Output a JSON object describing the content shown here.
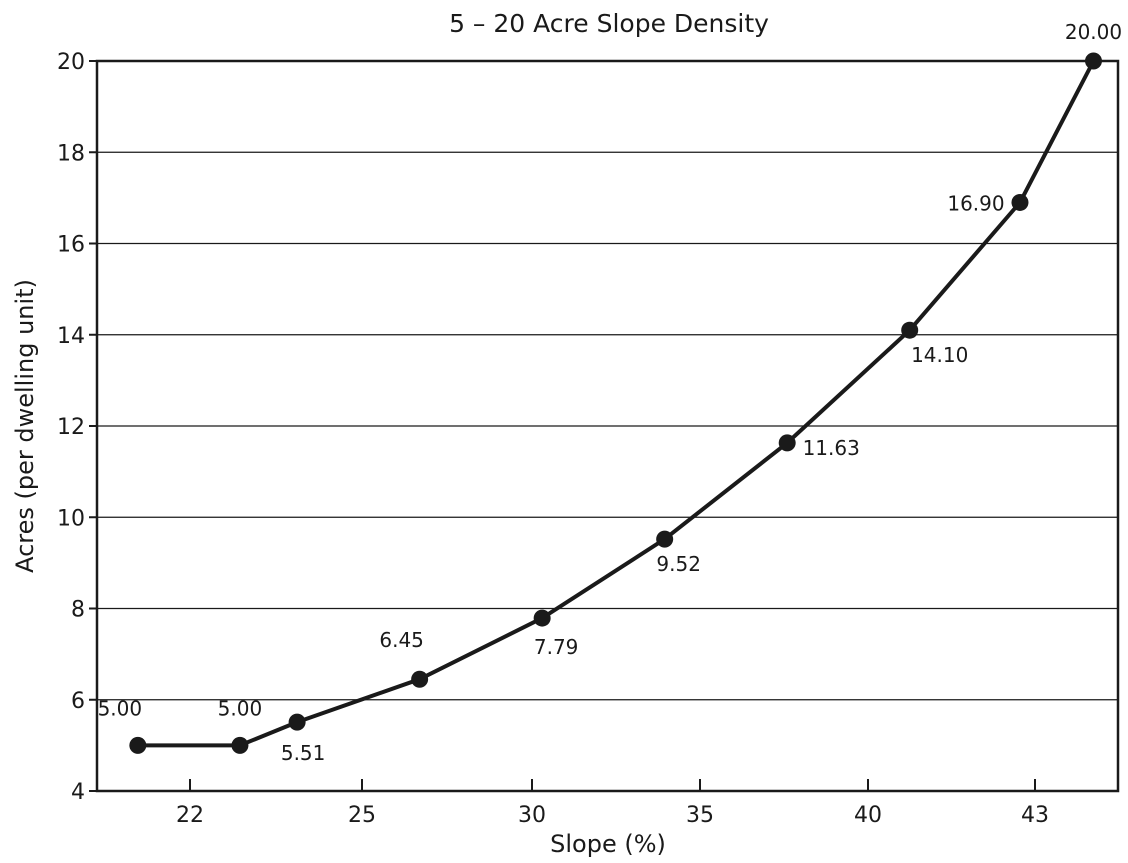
{
  "chart_data": {
    "type": "line",
    "title": "5 – 20 Acre Slope Density",
    "xlabel": "Slope (%)",
    "ylabel": "Acres (per dwelling unit)",
    "x_tick_labels": [
      "22",
      "25",
      "30",
      "35",
      "40",
      "43"
    ],
    "y_ticks": [
      4,
      6,
      8,
      10,
      12,
      14,
      16,
      18,
      20
    ],
    "ylim": [
      4,
      20
    ],
    "grid": "horizontal",
    "series": [
      {
        "points": [
          {
            "x": 21,
            "y": 5.0,
            "label": "5.00"
          },
          {
            "x": 23.5,
            "y": 5.0,
            "label": "5.00"
          },
          {
            "x": 24.9,
            "y": 5.51,
            "label": "5.51"
          },
          {
            "x": 27.9,
            "y": 6.45,
            "label": "6.45"
          },
          {
            "x": 30.9,
            "y": 7.79,
            "label": "7.79"
          },
          {
            "x": 33.9,
            "y": 9.52,
            "label": "9.52"
          },
          {
            "x": 36.9,
            "y": 11.63,
            "label": "11.63"
          },
          {
            "x": 39.9,
            "y": 14.1,
            "label": "14.10"
          },
          {
            "x": 42.6,
            "y": 16.9,
            "label": "16.90"
          },
          {
            "x": 44.4,
            "y": 20.0,
            "label": "20.00"
          }
        ]
      }
    ]
  }
}
